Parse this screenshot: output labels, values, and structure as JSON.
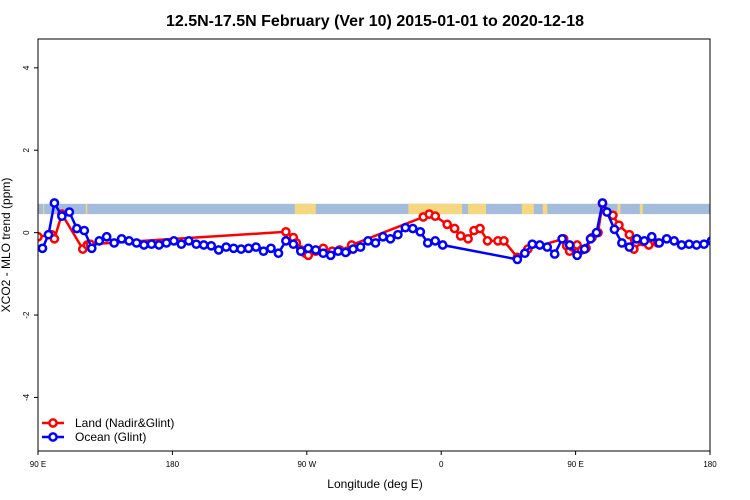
{
  "chart_data": {
    "type": "line",
    "title": "12.5N-17.5N February (Ver 10)   2015-01-01 to 2020-12-18",
    "xlabel": "Longitude (deg E)",
    "ylabel": "XCO2 - MLO trend (ppm)",
    "xlim": [
      90,
      540
    ],
    "ylim": [
      -5.3,
      4.7
    ],
    "x_ticks": [
      {
        "value": 90,
        "label": "90 E"
      },
      {
        "value": 180,
        "label": "180"
      },
      {
        "value": 270,
        "label": "90 W"
      },
      {
        "value": 360,
        "label": "0"
      },
      {
        "value": 450,
        "label": "90 E"
      },
      {
        "value": 540,
        "label": "180"
      }
    ],
    "y_ticks": [
      -4,
      -2,
      0,
      2,
      4
    ],
    "legend": {
      "position": "bottom-left",
      "entries": [
        {
          "label": "Land (Nadir&Glint)",
          "color": "#ff0000"
        },
        {
          "label": "Ocean (Glint)",
          "color": "#0000ff"
        }
      ]
    },
    "surface_band": {
      "y_range": [
        0.45,
        0.7
      ],
      "ocean_color": "#a4bcdc",
      "land_color": "#f5d77f",
      "land_segments": [
        [
          93.5,
          94
        ],
        [
          122,
          123
        ],
        [
          262,
          270
        ],
        [
          270,
          276
        ],
        [
          338,
          374
        ],
        [
          378,
          390
        ],
        [
          414,
          422
        ],
        [
          428,
          431
        ],
        [
          467,
          471
        ],
        [
          478,
          480
        ],
        [
          493,
          495
        ],
        [
          589,
          593
        ]
      ]
    },
    "series": [
      {
        "name": "Land (Nadir&Glint)",
        "color": "#ff0000",
        "x": [
          90,
          99,
          101,
          106,
          120,
          123,
          125,
          256,
          261,
          263,
          266,
          269,
          271,
          276,
          281,
          287,
          292,
          297,
          300,
          348,
          352,
          356,
          364,
          369,
          373,
          378,
          382,
          386,
          391,
          398,
          402,
          411,
          418,
          442,
          444,
          446,
          448,
          451,
          454,
          457,
          461,
          465,
          468,
          475,
          479,
          486,
          489,
          495,
          499,
          505
        ],
        "y": [
          -0.1,
          -0.05,
          -0.15,
          0.45,
          -0.4,
          -0.3,
          -0.28,
          0.02,
          -0.12,
          -0.25,
          -0.42,
          -0.5,
          -0.55,
          -0.45,
          -0.38,
          -0.45,
          -0.42,
          -0.45,
          -0.3,
          0.38,
          0.45,
          0.4,
          0.2,
          0.1,
          -0.08,
          -0.15,
          0.05,
          0.1,
          -0.2,
          -0.2,
          -0.2,
          -0.6,
          -0.4,
          -0.15,
          -0.32,
          -0.45,
          -0.35,
          -0.3,
          -0.42,
          -0.38,
          -0.12,
          0.0,
          0.7,
          0.42,
          0.18,
          -0.05,
          -0.4,
          -0.22,
          -0.3,
          -0.25
        ]
      },
      {
        "name": "Ocean (Glint)",
        "color": "#0000ff",
        "x": [
          93,
          97,
          101,
          106,
          111,
          116,
          121,
          126,
          131,
          136,
          141,
          146,
          151,
          156,
          161,
          166,
          171,
          176,
          181,
          186,
          191,
          196,
          201,
          206,
          211,
          216,
          221,
          226,
          231,
          236,
          241,
          246,
          251,
          256,
          261,
          266,
          271,
          276,
          281,
          286,
          291,
          296,
          301,
          306,
          311,
          316,
          321,
          326,
          331,
          336,
          341,
          346,
          351,
          356,
          361,
          411,
          416,
          421,
          426,
          431,
          436,
          441,
          446,
          451,
          456,
          460,
          464,
          468,
          471,
          476,
          481,
          486,
          491,
          496,
          501,
          506,
          511,
          516,
          521,
          526,
          531,
          536,
          541
        ],
        "y": [
          -0.38,
          -0.05,
          0.72,
          0.4,
          0.5,
          0.1,
          0.05,
          -0.38,
          -0.2,
          -0.1,
          -0.25,
          -0.15,
          -0.2,
          -0.25,
          -0.3,
          -0.28,
          -0.3,
          -0.25,
          -0.2,
          -0.28,
          -0.2,
          -0.28,
          -0.3,
          -0.32,
          -0.42,
          -0.35,
          -0.38,
          -0.4,
          -0.38,
          -0.35,
          -0.45,
          -0.38,
          -0.5,
          -0.2,
          -0.28,
          -0.45,
          -0.38,
          -0.42,
          -0.5,
          -0.55,
          -0.45,
          -0.48,
          -0.4,
          -0.35,
          -0.2,
          -0.25,
          -0.1,
          -0.15,
          -0.05,
          0.12,
          0.1,
          0.02,
          -0.25,
          -0.2,
          -0.3,
          -0.65,
          -0.5,
          -0.28,
          -0.3,
          -0.35,
          -0.52,
          -0.15,
          -0.3,
          -0.55,
          -0.4,
          -0.15,
          0.0,
          0.72,
          0.5,
          0.08,
          -0.25,
          -0.35,
          -0.15,
          -0.2,
          -0.1,
          -0.25,
          -0.15,
          -0.2,
          -0.3,
          -0.28,
          -0.3,
          -0.28,
          -0.2
        ]
      }
    ]
  }
}
